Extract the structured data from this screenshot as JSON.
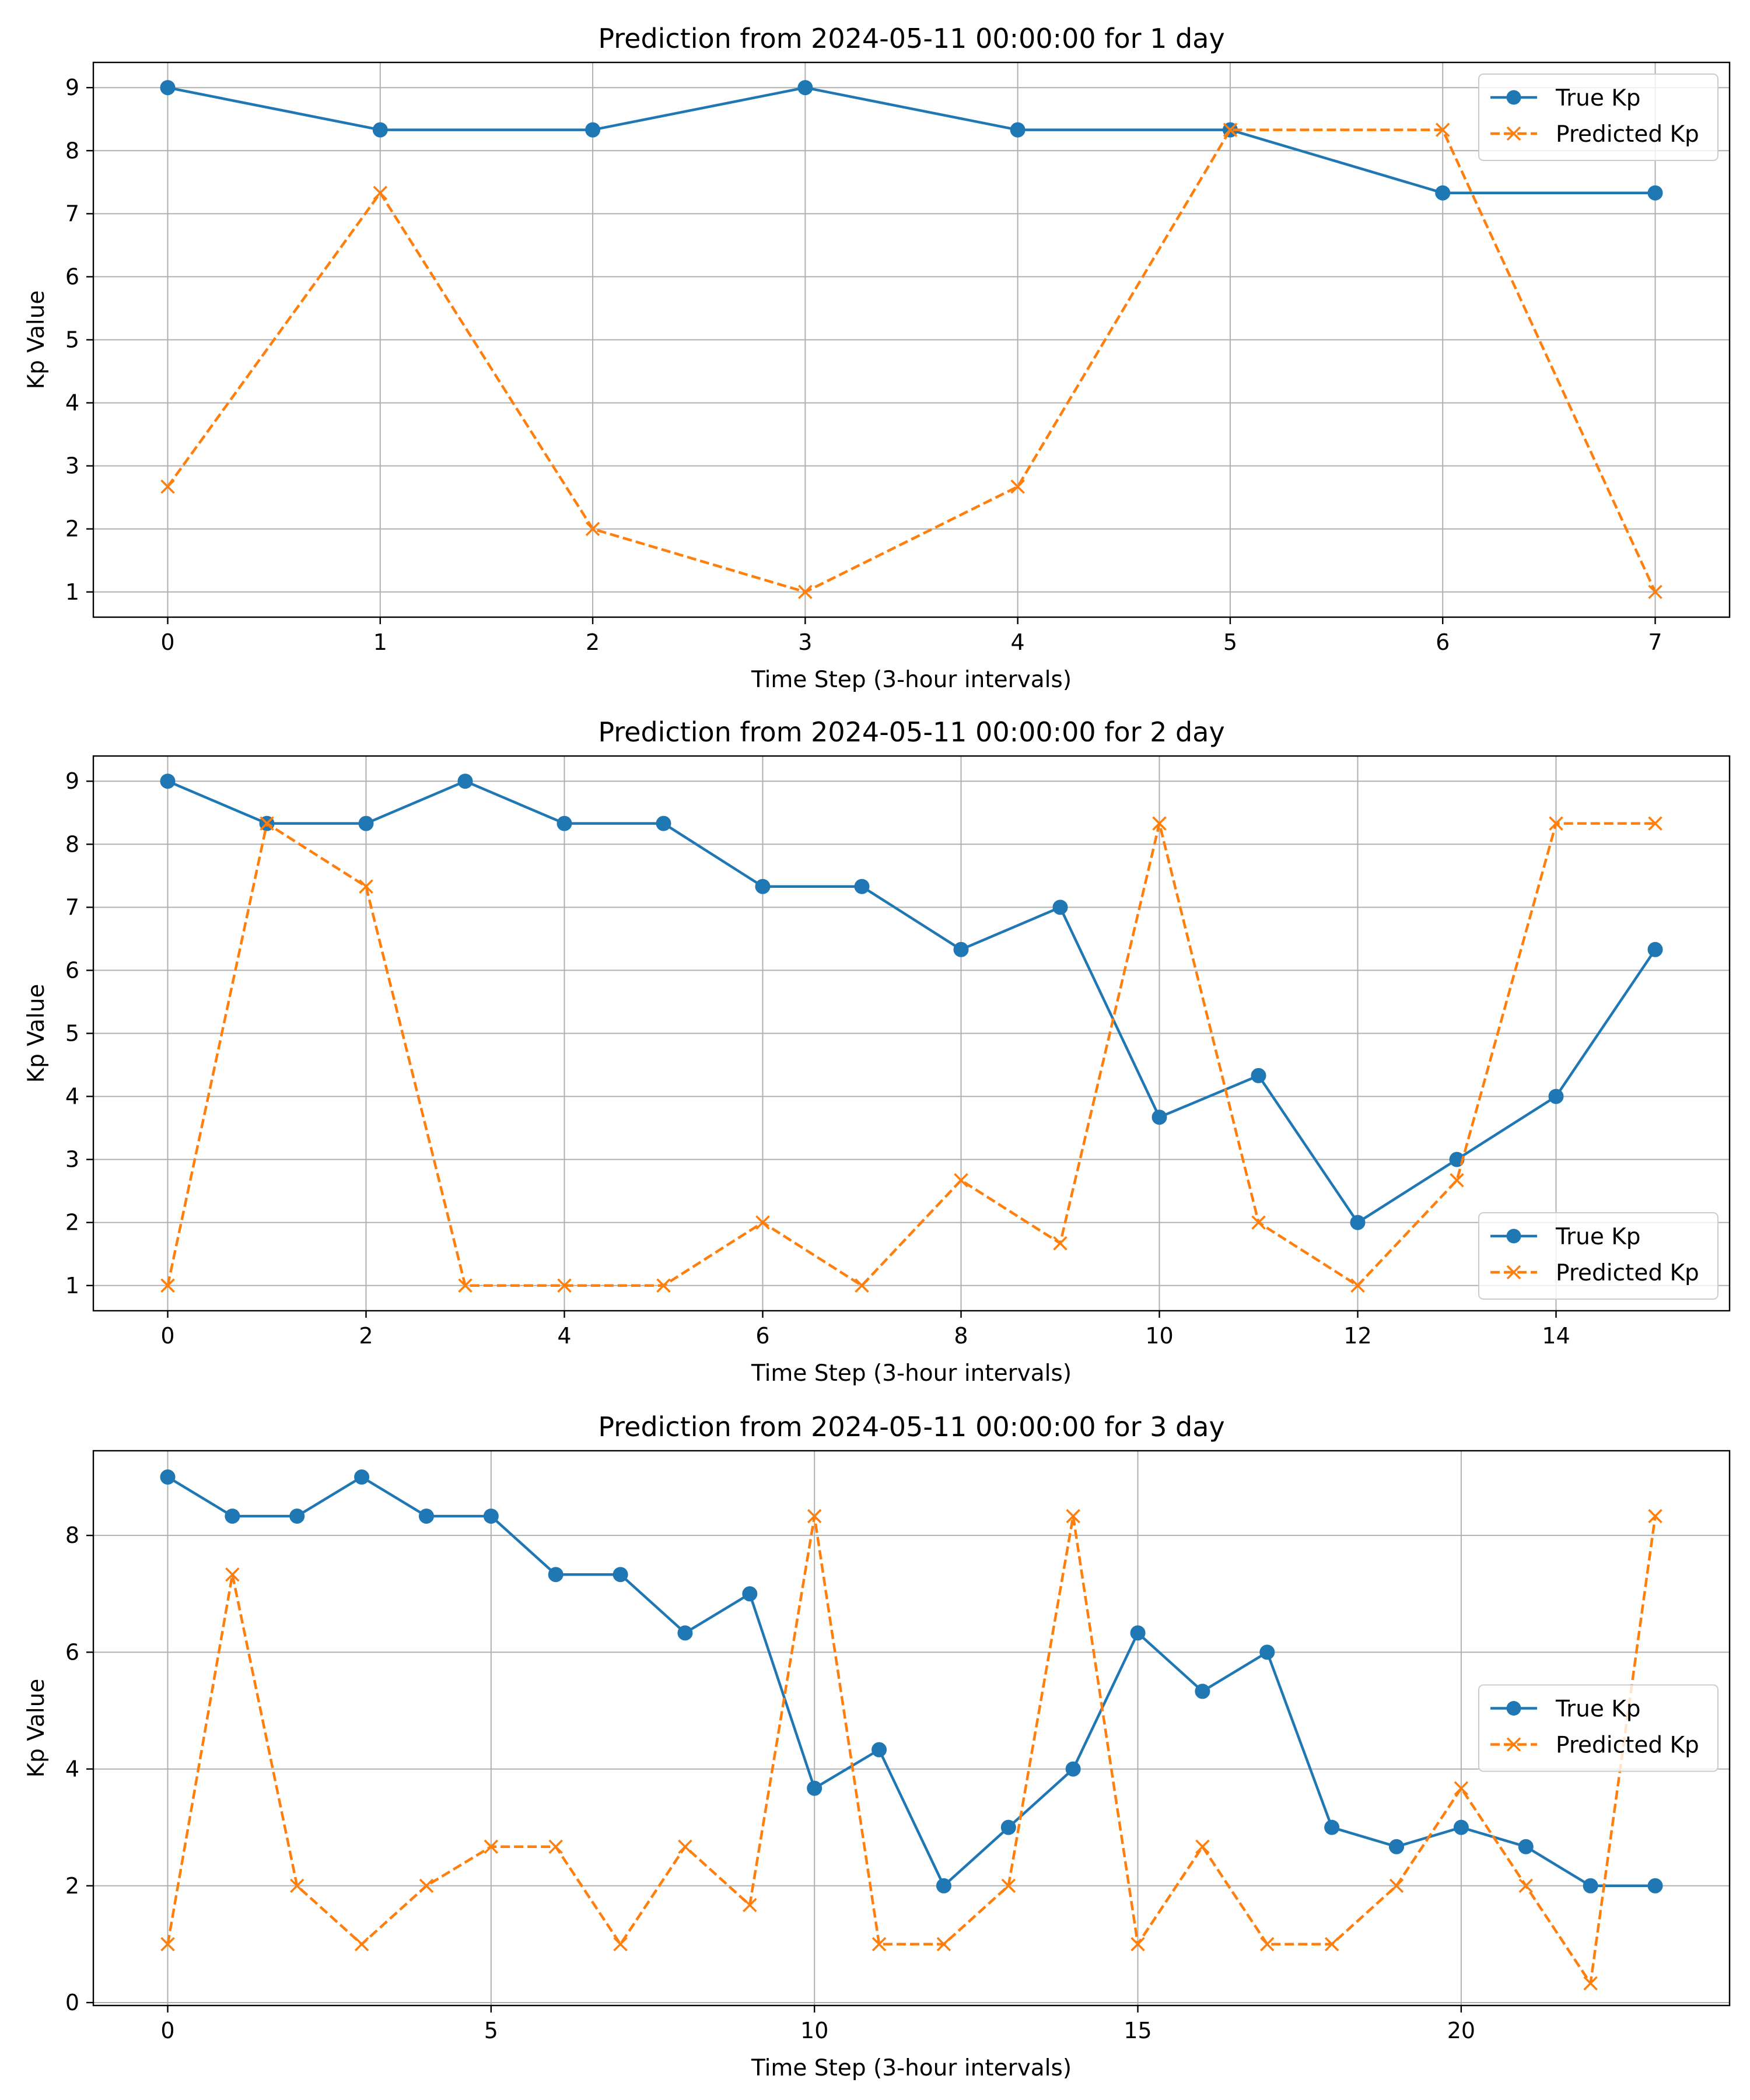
{
  "chart_data": [
    {
      "type": "line",
      "title": "Prediction from 2024-05-11 00:00:00 for 1 day",
      "xlabel": "Time Step (3-hour intervals)",
      "ylabel": "Kp Value",
      "xlim": [
        -0.35,
        7.35
      ],
      "ylim": [
        0.6,
        9.4
      ],
      "xticks": [
        0,
        1,
        2,
        3,
        4,
        5,
        6,
        7
      ],
      "xtick_labels": [
        "0",
        "1",
        "2",
        "3",
        "4",
        "5",
        "6",
        "7"
      ],
      "yticks": [
        1,
        2,
        3,
        4,
        5,
        6,
        7,
        8,
        9
      ],
      "ytick_labels": [
        "1",
        "2",
        "3",
        "4",
        "5",
        "6",
        "7",
        "8",
        "9"
      ],
      "grid": true,
      "legend_position": "top-right",
      "x": [
        0,
        1,
        2,
        3,
        4,
        5,
        6,
        7
      ],
      "series": [
        {
          "name": "True Kp",
          "color": "#1f77b4",
          "style": "solid",
          "marker": "circle",
          "values": [
            9,
            8.33,
            8.33,
            9,
            8.33,
            8.33,
            7.33,
            7.33
          ]
        },
        {
          "name": "Predicted Kp",
          "color": "#ff7f0e",
          "style": "dashed",
          "marker": "x",
          "values": [
            2.67,
            7.33,
            2,
            1,
            2.67,
            8.33,
            8.33,
            1
          ]
        }
      ]
    },
    {
      "type": "line",
      "title": "Prediction from 2024-05-11 00:00:00 for 2 day",
      "xlabel": "Time Step (3-hour intervals)",
      "ylabel": "Kp Value",
      "xlim": [
        -0.75,
        15.75
      ],
      "ylim": [
        0.6,
        9.4
      ],
      "xticks": [
        0,
        2,
        4,
        6,
        8,
        10,
        12,
        14
      ],
      "xtick_labels": [
        "0",
        "2",
        "4",
        "6",
        "8",
        "10",
        "12",
        "14"
      ],
      "yticks": [
        1,
        2,
        3,
        4,
        5,
        6,
        7,
        8,
        9
      ],
      "ytick_labels": [
        "1",
        "2",
        "3",
        "4",
        "5",
        "6",
        "7",
        "8",
        "9"
      ],
      "grid": true,
      "legend_position": "bottom-right",
      "x": [
        0,
        1,
        2,
        3,
        4,
        5,
        6,
        7,
        8,
        9,
        10,
        11,
        12,
        13,
        14,
        15
      ],
      "series": [
        {
          "name": "True Kp",
          "color": "#1f77b4",
          "style": "solid",
          "marker": "circle",
          "values": [
            9,
            8.33,
            8.33,
            9,
            8.33,
            8.33,
            7.33,
            7.33,
            6.33,
            7,
            3.67,
            4.33,
            2,
            3,
            4,
            6.33
          ]
        },
        {
          "name": "Predicted Kp",
          "color": "#ff7f0e",
          "style": "dashed",
          "marker": "x",
          "values": [
            1,
            8.33,
            7.33,
            1,
            1,
            1,
            2,
            1,
            2.67,
            1.67,
            8.33,
            2,
            1,
            2.67,
            8.33,
            8.33
          ]
        }
      ]
    },
    {
      "type": "line",
      "title": "Prediction from 2024-05-11 00:00:00 for 3 day",
      "xlabel": "Time Step (3-hour intervals)",
      "ylabel": "Kp Value",
      "xlim": [
        -1.15,
        24.15
      ],
      "ylim": [
        -0.05,
        9.45
      ],
      "xticks": [
        0,
        5,
        10,
        15,
        20
      ],
      "xtick_labels": [
        "0",
        "5",
        "10",
        "15",
        "20"
      ],
      "yticks": [
        0,
        2,
        4,
        6,
        8
      ],
      "ytick_labels": [
        "0",
        "2",
        "4",
        "6",
        "8"
      ],
      "grid": true,
      "legend_position": "center-right",
      "x": [
        0,
        1,
        2,
        3,
        4,
        5,
        6,
        7,
        8,
        9,
        10,
        11,
        12,
        13,
        14,
        15,
        16,
        17,
        18,
        19,
        20,
        21,
        22,
        23
      ],
      "series": [
        {
          "name": "True Kp",
          "color": "#1f77b4",
          "style": "solid",
          "marker": "circle",
          "values": [
            9,
            8.33,
            8.33,
            9,
            8.33,
            8.33,
            7.33,
            7.33,
            6.33,
            7,
            3.67,
            4.33,
            2,
            3,
            4,
            6.33,
            5.33,
            6,
            3,
            2.67,
            3,
            2.67,
            2,
            2
          ]
        },
        {
          "name": "Predicted Kp",
          "color": "#ff7f0e",
          "style": "dashed",
          "marker": "x",
          "values": [
            1,
            7.33,
            2,
            1,
            2,
            2.67,
            2.67,
            1,
            2.67,
            1.67,
            8.33,
            1,
            1,
            2,
            8.33,
            1,
            2.67,
            1,
            1,
            2,
            3.67,
            2,
            0.33,
            8.33
          ]
        }
      ]
    }
  ]
}
